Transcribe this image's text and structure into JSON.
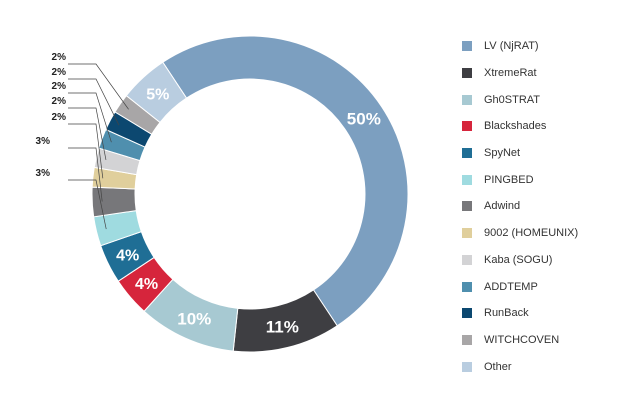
{
  "chart_data": {
    "type": "pie",
    "subtype": "donut",
    "legend_position": "right",
    "series": [
      {
        "name": "LV (NjRAT)",
        "value": 50,
        "label": "50%",
        "color": "#7c9fc0"
      },
      {
        "name": "XtremeRat",
        "value": 11,
        "label": "11%",
        "color": "#3e3e42"
      },
      {
        "name": "Gh0STRAT",
        "value": 10,
        "label": "10%",
        "color": "#a7c9d2"
      },
      {
        "name": "Blackshades",
        "value": 4,
        "label": "4%",
        "color": "#d6253c"
      },
      {
        "name": "SpyNet",
        "value": 4,
        "label": "4%",
        "color": "#1f6e95"
      },
      {
        "name": "PINGBED",
        "value": 3,
        "label": "3%",
        "color": "#9fdbe0"
      },
      {
        "name": "Adwind",
        "value": 3,
        "label": "3%",
        "color": "#77777a"
      },
      {
        "name": "9002 (HOMEUNIX)",
        "value": 2,
        "label": "2%",
        "color": "#e0cf9c"
      },
      {
        "name": "Kaba (SOGU)",
        "value": 2,
        "label": "2%",
        "color": "#d3d3d5"
      },
      {
        "name": "ADDTEMP",
        "value": 2,
        "label": "2%",
        "color": "#4f8fae"
      },
      {
        "name": "RunBack",
        "value": 2,
        "label": "2%",
        "color": "#0c4870"
      },
      {
        "name": "WITCHCOVEN",
        "value": 2,
        "label": "2%",
        "color": "#a8a6a7"
      },
      {
        "name": "Other",
        "value": 5,
        "label": "5%",
        "color": "#b9cde0"
      }
    ]
  }
}
